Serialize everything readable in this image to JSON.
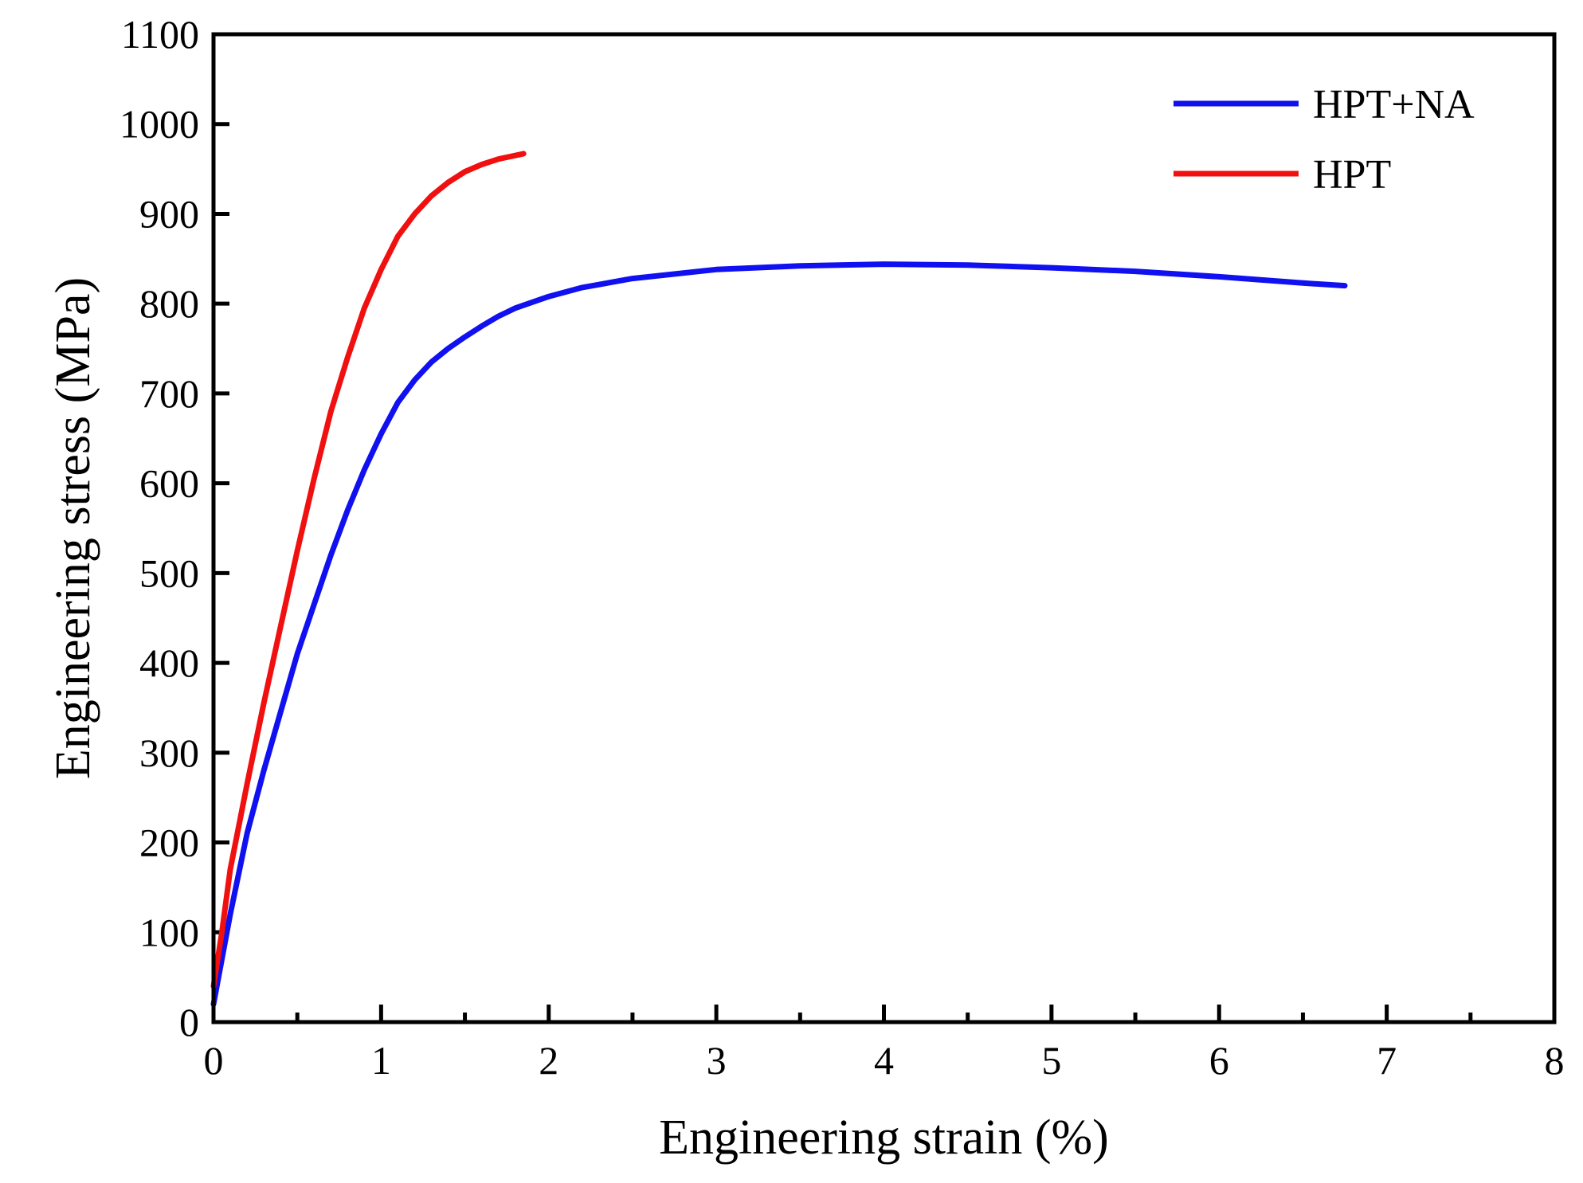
{
  "chart_data": {
    "type": "line",
    "title": "",
    "xlabel": "Engineering strain (%)",
    "ylabel": "Engineering stress (MPa)",
    "xlim": [
      0,
      8
    ],
    "ylim": [
      0,
      1100
    ],
    "xticks": [
      0,
      1,
      2,
      3,
      4,
      5,
      6,
      7,
      8
    ],
    "yticks": [
      0,
      100,
      200,
      300,
      400,
      500,
      600,
      700,
      800,
      900,
      1000,
      1100
    ],
    "xtick_labels": [
      "0",
      "1",
      "2",
      "3",
      "4",
      "5",
      "6",
      "7",
      "8"
    ],
    "ytick_labels": [
      "0",
      "100",
      "200",
      "300",
      "400",
      "500",
      "600",
      "700",
      "800",
      "900",
      "1000",
      "1100"
    ],
    "grid": false,
    "legend_position": "top-right",
    "series": [
      {
        "name": "HPT+NA",
        "color": "#1010f0",
        "x": [
          0,
          0.1,
          0.2,
          0.3,
          0.4,
          0.5,
          0.6,
          0.7,
          0.8,
          0.9,
          1.0,
          1.1,
          1.2,
          1.3,
          1.4,
          1.5,
          1.6,
          1.7,
          1.8,
          2.0,
          2.2,
          2.5,
          3.0,
          3.5,
          4.0,
          4.5,
          5.0,
          5.5,
          6.0,
          6.5,
          6.75
        ],
        "y": [
          20,
          120,
          210,
          280,
          345,
          410,
          465,
          520,
          570,
          615,
          655,
          690,
          715,
          735,
          750,
          763,
          775,
          786,
          795,
          808,
          818,
          828,
          838,
          842,
          844,
          843,
          840,
          836,
          830,
          823,
          820
        ]
      },
      {
        "name": "HPT",
        "color": "#f01010",
        "x": [
          0,
          0.05,
          0.1,
          0.2,
          0.3,
          0.4,
          0.5,
          0.6,
          0.7,
          0.8,
          0.9,
          1.0,
          1.1,
          1.2,
          1.3,
          1.4,
          1.5,
          1.6,
          1.7,
          1.85
        ],
        "y": [
          40,
          100,
          170,
          265,
          355,
          440,
          525,
          605,
          680,
          740,
          795,
          838,
          875,
          900,
          920,
          935,
          947,
          955,
          961,
          967
        ]
      }
    ]
  }
}
